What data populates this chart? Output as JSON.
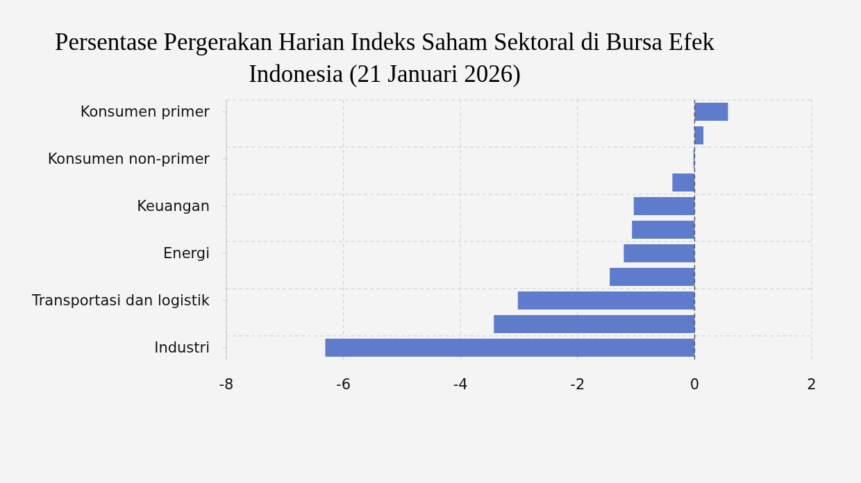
{
  "chart_data": {
    "type": "bar",
    "orientation": "horizontal",
    "title": "Persentase Pergerakan Harian Indeks Saham Sektoral di Bursa Efek Indonesia (21 Januari 2026)",
    "categories": [
      "Konsumen primer",
      null,
      "Konsumen non-primer",
      null,
      "Keuangan",
      null,
      "Energi",
      null,
      "Transportasi dan logistik",
      null,
      "Industri"
    ],
    "values": [
      0.57,
      0.15,
      -0.02,
      -0.38,
      -1.04,
      -1.07,
      -1.21,
      -1.45,
      -3.02,
      -3.43,
      -6.31
    ],
    "color": "#5f7bcb",
    "xlim": [
      -8,
      2
    ],
    "xticks": [
      -8,
      -6,
      -4,
      -2,
      0,
      2
    ],
    "grid": true,
    "ref_lines": [
      {
        "axis": "x",
        "value": 0,
        "color": "#555555",
        "line_style": "dashed"
      }
    ]
  }
}
